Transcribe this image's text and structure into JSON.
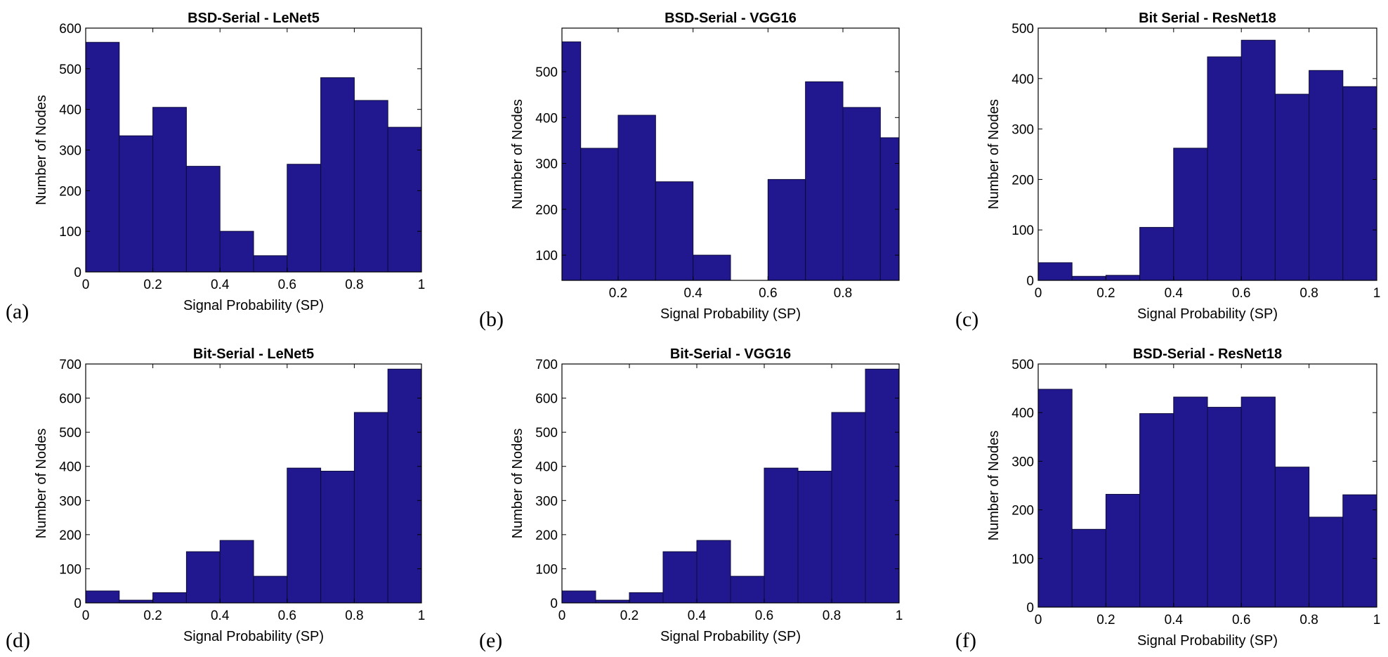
{
  "chart_data": [
    {
      "panel_label": "(a)",
      "type": "bar",
      "title": "BSD-Serial - LeNet5",
      "xlabel": "Signal Probability (SP)",
      "ylabel": "Number of Nodes",
      "xlim": [
        0,
        1
      ],
      "ylim": [
        0,
        600
      ],
      "xticks": [
        0,
        0.2,
        0.4,
        0.6,
        0.8,
        1
      ],
      "xtick_labels": [
        "0",
        "0.2",
        "0.4",
        "0.6",
        "0.8",
        "1"
      ],
      "yticks": [
        0,
        100,
        200,
        300,
        400,
        500,
        600
      ],
      "bin_edges": [
        0,
        0.1,
        0.2,
        0.3,
        0.4,
        0.5,
        0.6,
        0.7,
        0.8,
        0.9,
        1.0
      ],
      "values": [
        565,
        335,
        405,
        260,
        100,
        40,
        265,
        478,
        422,
        356
      ],
      "grid": false
    },
    {
      "panel_label": "(b)",
      "type": "bar",
      "title": "BSD-Serial - VGG16",
      "xlabel": "Signal Probability (SP)",
      "ylabel": "Number of Nodes",
      "xlim": [
        0.05,
        0.95
      ],
      "ylim": [
        45,
        595
      ],
      "xticks": [
        0.2,
        0.4,
        0.6,
        0.8
      ],
      "xtick_labels": [
        "0.2",
        "0.4",
        "0.6",
        "0.8"
      ],
      "yticks": [
        100,
        200,
        300,
        400,
        500
      ],
      "bin_edges": [
        0.05,
        0.1,
        0.2,
        0.3,
        0.4,
        0.5,
        0.6,
        0.7,
        0.8,
        0.9,
        0.95
      ],
      "values": [
        565,
        333,
        405,
        260,
        100,
        0,
        265,
        478,
        422,
        356
      ],
      "grid": false
    },
    {
      "panel_label": "(c)",
      "type": "bar",
      "title": "Bit Serial - ResNet18",
      "xlabel": "Signal Probability (SP)",
      "ylabel": "Number of Nodes",
      "xlim": [
        0,
        1
      ],
      "ylim": [
        0,
        500
      ],
      "xticks": [
        0,
        0.2,
        0.4,
        0.6,
        0.8,
        1
      ],
      "xtick_labels": [
        "0",
        "0.2",
        "0.4",
        "0.6",
        "0.8",
        "1"
      ],
      "yticks": [
        0,
        100,
        200,
        300,
        400,
        500
      ],
      "bin_edges": [
        0,
        0.1,
        0.2,
        0.3,
        0.4,
        0.5,
        0.6,
        0.7,
        0.8,
        0.9,
        1.0
      ],
      "values": [
        35,
        8,
        10,
        105,
        262,
        443,
        476,
        369,
        416,
        384
      ],
      "grid": false
    },
    {
      "panel_label": "(d)",
      "type": "bar",
      "title": "Bit-Serial - LeNet5",
      "xlabel": "Signal Probability (SP)",
      "ylabel": "Number of Nodes",
      "xlim": [
        0,
        1
      ],
      "ylim": [
        0,
        700
      ],
      "xticks": [
        0,
        0.2,
        0.4,
        0.6,
        0.8,
        1
      ],
      "xtick_labels": [
        "0",
        "0.2",
        "0.4",
        "0.6",
        "0.8",
        "1"
      ],
      "yticks": [
        0,
        100,
        200,
        300,
        400,
        500,
        600,
        700
      ],
      "bin_edges": [
        0,
        0.1,
        0.2,
        0.3,
        0.4,
        0.5,
        0.6,
        0.7,
        0.8,
        0.9,
        1.0
      ],
      "values": [
        35,
        8,
        30,
        150,
        183,
        78,
        395,
        386,
        558,
        685
      ],
      "grid": false
    },
    {
      "panel_label": "(e)",
      "type": "bar",
      "title": "Bit-Serial - VGG16",
      "xlabel": "Signal Probability (SP)",
      "ylabel": "Number of Nodes",
      "xlim": [
        0,
        1
      ],
      "ylim": [
        0,
        700
      ],
      "xticks": [
        0,
        0.2,
        0.4,
        0.6,
        0.8,
        1
      ],
      "xtick_labels": [
        "0",
        "0.2",
        "0.4",
        "0.6",
        "0.8",
        "1"
      ],
      "yticks": [
        0,
        100,
        200,
        300,
        400,
        500,
        600,
        700
      ],
      "bin_edges": [
        0,
        0.1,
        0.2,
        0.3,
        0.4,
        0.5,
        0.6,
        0.7,
        0.8,
        0.9,
        1.0
      ],
      "values": [
        35,
        8,
        30,
        150,
        183,
        78,
        395,
        386,
        558,
        685
      ],
      "grid": false
    },
    {
      "panel_label": "(f)",
      "type": "bar",
      "title": "BSD-Serial - ResNet18",
      "xlabel": "Signal Probability (SP)",
      "ylabel": "Number of Nodes",
      "xlim": [
        0,
        1
      ],
      "ylim": [
        0,
        500
      ],
      "xticks": [
        0,
        0.2,
        0.4,
        0.6,
        0.8,
        1
      ],
      "xtick_labels": [
        "0",
        "0.2",
        "0.4",
        "0.6",
        "0.8",
        "1"
      ],
      "yticks": [
        0,
        100,
        200,
        300,
        400,
        500
      ],
      "bin_edges": [
        0,
        0.1,
        0.2,
        0.3,
        0.4,
        0.5,
        0.6,
        0.7,
        0.8,
        0.9,
        1.0
      ],
      "values": [
        448,
        160,
        232,
        398,
        432,
        411,
        432,
        288,
        185,
        231
      ],
      "grid": false
    }
  ],
  "colors": {
    "bar_fill": "#21188f",
    "bar_edge": "#0c0a3a",
    "axis": "#000000",
    "background": "#ffffff"
  }
}
